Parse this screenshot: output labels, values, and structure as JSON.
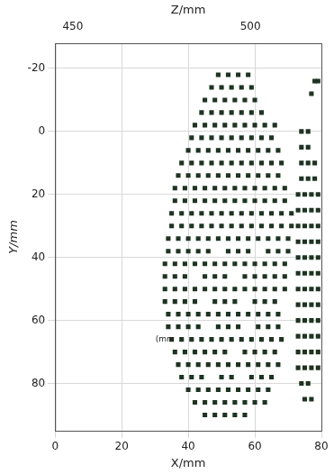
{
  "chart_data": {
    "type": "scatter",
    "x_label": "X/mm",
    "y_label": "Y/mm",
    "z_label": "Z/mm",
    "xlim": [
      0,
      80
    ],
    "xticks": [
      0,
      20,
      40,
      60,
      80
    ],
    "ylim": [
      -28,
      95
    ],
    "yticks": [
      -20,
      0,
      20,
      40,
      60,
      80
    ],
    "zlim": [
      445,
      520
    ],
    "zticks": [
      450,
      500
    ],
    "grid": true,
    "color": "#1e3322",
    "marker": "square",
    "annotations": [
      {
        "text": "(mm",
        "x": 33,
        "y": 66
      }
    ],
    "x": [
      49,
      52,
      55,
      58,
      47,
      50,
      53,
      56,
      59,
      45,
      48,
      51,
      54,
      57,
      60,
      44,
      47,
      50,
      53,
      56,
      59,
      62,
      42,
      45,
      48,
      51,
      54,
      57,
      60,
      63,
      66,
      41,
      44,
      47,
      50,
      53,
      56,
      59,
      62,
      65,
      40,
      43,
      46,
      49,
      52,
      55,
      58,
      61,
      64,
      67,
      38,
      41,
      44,
      47,
      50,
      53,
      56,
      59,
      62,
      65,
      68,
      37,
      40,
      43,
      46,
      49,
      52,
      55,
      58,
      61,
      64,
      67,
      36,
      39,
      42,
      45,
      48,
      51,
      54,
      57,
      60,
      63,
      66,
      69,
      36,
      39,
      42,
      45,
      48,
      51,
      54,
      57,
      60,
      63,
      66,
      69,
      35,
      38,
      41,
      44,
      47,
      50,
      53,
      56,
      59,
      62,
      65,
      68,
      71,
      35,
      38,
      41,
      44,
      47,
      50,
      53,
      56,
      59,
      62,
      65,
      68,
      71,
      34,
      37,
      40,
      43,
      46,
      49,
      52,
      55,
      58,
      61,
      64,
      67,
      70,
      34,
      37,
      40,
      43,
      46,
      52,
      55,
      58,
      64,
      67,
      70,
      33,
      36,
      39,
      42,
      45,
      48,
      51,
      54,
      57,
      60,
      63,
      66,
      69,
      33,
      36,
      39,
      45,
      48,
      51,
      57,
      60,
      63,
      66,
      69,
      33,
      36,
      39,
      42,
      45,
      48,
      51,
      54,
      57,
      60,
      63,
      66,
      69,
      33,
      36,
      39,
      42,
      48,
      51,
      54,
      60,
      63,
      66,
      34,
      37,
      40,
      43,
      46,
      49,
      52,
      55,
      58,
      61,
      64,
      67,
      34,
      37,
      40,
      43,
      49,
      52,
      55,
      61,
      64,
      67,
      35,
      38,
      41,
      44,
      47,
      50,
      53,
      56,
      59,
      62,
      65,
      68,
      36,
      39,
      42,
      45,
      48,
      51,
      57,
      60,
      63,
      66,
      37,
      40,
      43,
      46,
      49,
      52,
      55,
      58,
      61,
      64,
      67,
      38,
      41,
      44,
      50,
      53,
      59,
      62,
      65,
      40,
      43,
      46,
      49,
      52,
      55,
      58,
      61,
      64,
      42,
      45,
      48,
      51,
      54,
      57,
      60,
      63,
      45,
      48,
      51,
      54,
      57,
      74,
      76,
      74,
      76,
      74,
      76,
      78,
      74,
      76,
      78,
      73,
      75,
      77,
      79,
      73,
      75,
      77,
      79,
      73,
      75,
      77,
      79,
      73,
      75,
      77,
      79,
      73,
      75,
      77,
      79,
      73,
      75,
      77,
      79,
      73,
      75,
      77,
      79,
      73,
      75,
      77,
      79,
      73,
      75,
      77,
      79,
      73,
      75,
      77,
      79,
      73,
      75,
      77,
      79,
      73,
      75,
      77,
      79,
      74,
      76,
      75,
      77,
      78,
      79,
      77
    ],
    "values": [
      -18,
      -18,
      -18,
      -18,
      -14,
      -14,
      -14,
      -14,
      -14,
      -10,
      -10,
      -10,
      -10,
      -10,
      -10,
      -6,
      -6,
      -6,
      -6,
      -6,
      -6,
      -6,
      -2,
      -2,
      -2,
      -2,
      -2,
      -2,
      -2,
      -2,
      -2,
      2,
      2,
      2,
      2,
      2,
      2,
      2,
      2,
      2,
      6,
      6,
      6,
      6,
      6,
      6,
      6,
      6,
      6,
      6,
      10,
      10,
      10,
      10,
      10,
      10,
      10,
      10,
      10,
      10,
      10,
      14,
      14,
      14,
      14,
      14,
      14,
      14,
      14,
      14,
      14,
      14,
      18,
      18,
      18,
      18,
      18,
      18,
      18,
      18,
      18,
      18,
      18,
      18,
      22,
      22,
      22,
      22,
      22,
      22,
      22,
      22,
      22,
      22,
      22,
      22,
      26,
      26,
      26,
      26,
      26,
      26,
      26,
      26,
      26,
      26,
      26,
      26,
      26,
      30,
      30,
      30,
      30,
      30,
      30,
      30,
      30,
      30,
      30,
      30,
      30,
      30,
      34,
      34,
      34,
      34,
      34,
      34,
      34,
      34,
      34,
      34,
      34,
      34,
      34,
      38,
      38,
      38,
      38,
      38,
      38,
      38,
      38,
      38,
      38,
      38,
      42,
      42,
      42,
      42,
      42,
      42,
      42,
      42,
      42,
      42,
      42,
      42,
      42,
      46,
      46,
      46,
      46,
      46,
      46,
      46,
      46,
      46,
      46,
      46,
      50,
      50,
      50,
      50,
      50,
      50,
      50,
      50,
      50,
      50,
      50,
      50,
      50,
      54,
      54,
      54,
      54,
      54,
      54,
      54,
      54,
      54,
      54,
      58,
      58,
      58,
      58,
      58,
      58,
      58,
      58,
      58,
      58,
      58,
      58,
      62,
      62,
      62,
      62,
      62,
      62,
      62,
      62,
      62,
      62,
      66,
      66,
      66,
      66,
      66,
      66,
      66,
      66,
      66,
      66,
      66,
      66,
      70,
      70,
      70,
      70,
      70,
      70,
      70,
      70,
      70,
      70,
      74,
      74,
      74,
      74,
      74,
      74,
      74,
      74,
      74,
      74,
      74,
      78,
      78,
      78,
      78,
      78,
      78,
      78,
      78,
      82,
      82,
      82,
      82,
      82,
      82,
      82,
      82,
      82,
      86,
      86,
      86,
      86,
      86,
      86,
      86,
      86,
      90,
      90,
      90,
      90,
      90,
      0,
      0,
      5,
      5,
      10,
      10,
      10,
      15,
      15,
      15,
      20,
      20,
      20,
      20,
      25,
      25,
      25,
      25,
      30,
      30,
      30,
      30,
      35,
      35,
      35,
      35,
      40,
      40,
      40,
      40,
      45,
      45,
      45,
      45,
      50,
      50,
      50,
      50,
      55,
      55,
      55,
      55,
      60,
      60,
      60,
      60,
      65,
      65,
      65,
      65,
      70,
      70,
      70,
      70,
      75,
      75,
      75,
      75,
      80,
      80,
      85,
      85,
      -16,
      -16,
      -12
    ]
  }
}
